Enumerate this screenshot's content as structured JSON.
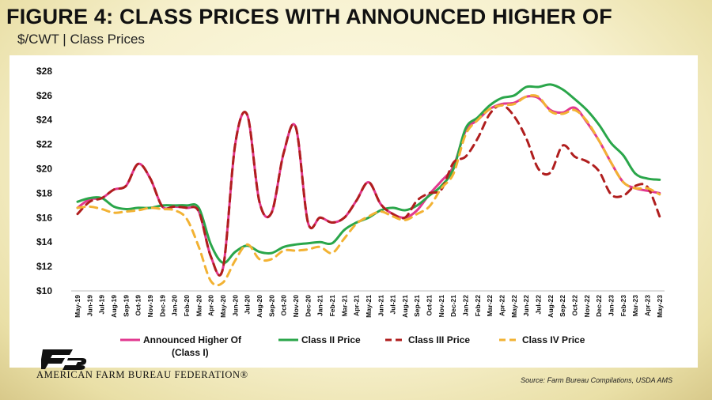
{
  "title": "FIGURE 4: CLASS PRICES WITH ANNOUNCED HIGHER OF",
  "subtitle": "$/CWT | Class Prices",
  "source": "Source: Farm Bureau Compilations, USDA AMS",
  "logo": {
    "text": "AMERICAN FARM BUREAU FEDERATION®",
    "icon": "fb-logo-icon"
  },
  "chart_data": {
    "type": "line",
    "x": [
      "May-19",
      "Jun-19",
      "Jul-19",
      "Aug-19",
      "Sep-19",
      "Oct-19",
      "Nov-19",
      "Dec-19",
      "Jan-20",
      "Feb-20",
      "Mar-20",
      "Apr-20",
      "May-20",
      "Jun-20",
      "Jul-20",
      "Aug-20",
      "Sep-20",
      "Oct-20",
      "Nov-20",
      "Dec-20",
      "Jan-21",
      "Feb-21",
      "Mar-21",
      "Apr-21",
      "May-21",
      "Jun-21",
      "Jul-21",
      "Aug-21",
      "Sep-21",
      "Oct-21",
      "Nov-21",
      "Dec-21",
      "Jan-22",
      "Feb-22",
      "Mar-22",
      "Apr-22",
      "May-22",
      "Jun-22",
      "Jul-22",
      "Aug-22",
      "Sep-22",
      "Oct-22",
      "Nov-22",
      "Dec-22",
      "Jan-23",
      "Feb-23",
      "Mar-23",
      "Apr-23",
      "May-23"
    ],
    "yticks": [
      "$10",
      "$12",
      "$14",
      "$16",
      "$18",
      "$20",
      "$22",
      "$24",
      "$26",
      "$28"
    ],
    "ylim": [
      10,
      28
    ],
    "grid": false,
    "legend": "bottom",
    "series": [
      {
        "name": "Announced Higher Of (Class I)",
        "name_lines": [
          "Announced Higher Of",
          "(Class I)"
        ],
        "color": "#e2388f",
        "dash": false,
        "values": [
          16.8,
          17.5,
          17.6,
          18.3,
          18.6,
          20.4,
          19.2,
          16.9,
          16.9,
          16.8,
          16.5,
          12.8,
          11.9,
          22.0,
          24.4,
          17.3,
          16.4,
          21.3,
          23.4,
          15.6,
          16.0,
          15.6,
          16.0,
          17.4,
          18.9,
          17.1,
          16.3,
          16.0,
          16.6,
          17.9,
          19.0,
          20.2,
          23.1,
          24.0,
          24.9,
          25.3,
          25.4,
          25.9,
          25.8,
          24.8,
          24.6,
          25.0,
          23.8,
          22.3,
          20.5,
          18.9,
          18.4,
          18.2,
          18.0
        ]
      },
      {
        "name": "Class II Price",
        "color": "#2aa64a",
        "dash": false,
        "values": [
          17.3,
          17.6,
          17.6,
          16.9,
          16.7,
          16.8,
          16.8,
          17.0,
          17.0,
          17.0,
          16.8,
          13.8,
          12.3,
          13.2,
          13.7,
          13.2,
          13.1,
          13.6,
          13.8,
          13.9,
          14.0,
          13.9,
          15.0,
          15.6,
          16.0,
          16.6,
          16.8,
          16.6,
          17.0,
          17.8,
          18.6,
          20.0,
          23.3,
          24.2,
          25.2,
          25.8,
          26.0,
          26.7,
          26.7,
          26.9,
          26.5,
          25.7,
          24.8,
          23.6,
          22.1,
          21.1,
          19.6,
          19.2,
          19.1
        ]
      },
      {
        "name": "Class III Price",
        "color": "#b01e1e",
        "dash": true,
        "values": [
          16.3,
          17.3,
          17.6,
          18.3,
          18.6,
          20.4,
          19.2,
          16.9,
          16.9,
          16.8,
          16.5,
          12.8,
          11.9,
          22.0,
          24.4,
          17.3,
          16.4,
          21.3,
          23.4,
          15.6,
          16.0,
          15.6,
          16.0,
          17.4,
          18.9,
          17.1,
          16.3,
          16.0,
          17.4,
          18.0,
          18.3,
          20.5,
          21.0,
          22.5,
          24.5,
          25.2,
          24.3,
          22.5,
          20.0,
          19.7,
          21.9,
          21.0,
          20.6,
          19.8,
          17.9,
          17.8,
          18.6,
          18.5,
          16.1
        ]
      },
      {
        "name": "Class IV Price",
        "color": "#f2b233",
        "dash": true,
        "values": [
          16.8,
          16.9,
          16.7,
          16.4,
          16.5,
          16.6,
          16.8,
          16.7,
          16.6,
          15.9,
          13.6,
          10.8,
          10.7,
          12.5,
          13.8,
          12.6,
          12.6,
          13.3,
          13.3,
          13.4,
          13.6,
          13.1,
          14.3,
          15.5,
          16.1,
          16.5,
          16.1,
          15.8,
          16.3,
          16.9,
          18.4,
          19.6,
          22.8,
          24.0,
          24.9,
          25.2,
          25.3,
          25.9,
          25.9,
          24.7,
          24.5,
          24.8,
          23.9,
          22.3,
          20.5,
          18.9,
          18.4,
          18.4,
          17.9
        ]
      }
    ]
  }
}
